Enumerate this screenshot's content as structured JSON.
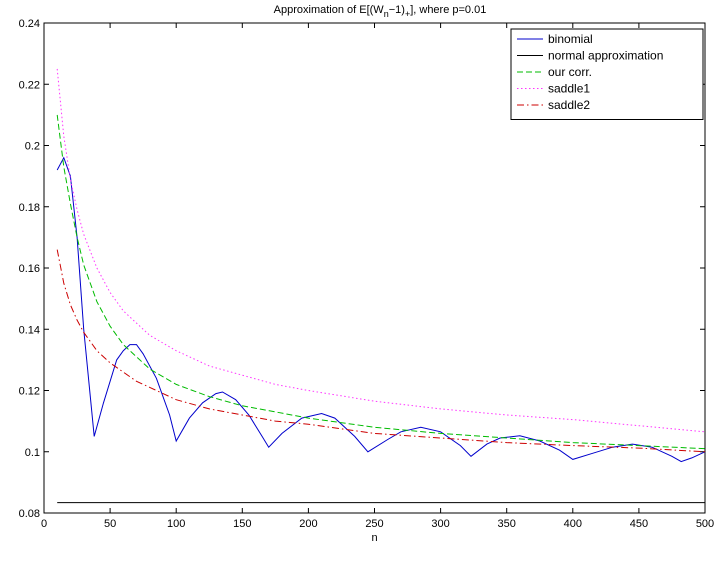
{
  "chart_data": {
    "type": "line",
    "title": {
      "prefix": "Approximation of E[(W",
      "sub1": "n",
      "middle": "−1)",
      "sub2": "+",
      "suffix": "], where p=0.01"
    },
    "xlabel": "n",
    "ylabel": "",
    "xlim": [
      0,
      500
    ],
    "ylim": [
      0.08,
      0.24
    ],
    "xticks": [
      0,
      50,
      100,
      150,
      200,
      250,
      300,
      350,
      400,
      450,
      500
    ],
    "yticks": [
      0.08,
      0.1,
      0.12,
      0.14,
      0.16,
      0.18,
      0.2,
      0.22,
      0.24
    ],
    "ytick_labels": [
      "0.08",
      "0.1",
      "0.12",
      "0.14",
      "0.16",
      "0.18",
      "0.2",
      "0.22",
      "0.24"
    ],
    "grid": false,
    "legend_position": "top-right",
    "series": [
      {
        "name": "binomial",
        "color": "#0000cc",
        "dash": "solid",
        "x": [
          10,
          15,
          20,
          25,
          30,
          38,
          45,
          55,
          60,
          65,
          70,
          75,
          85,
          95,
          100,
          110,
          120,
          130,
          135,
          145,
          155,
          165,
          170,
          180,
          195,
          210,
          220,
          235,
          245,
          260,
          270,
          285,
          300,
          315,
          323,
          335,
          345,
          360,
          375,
          390,
          400,
          415,
          430,
          445,
          460,
          475,
          482,
          490,
          500
        ],
        "y": [
          0.192,
          0.196,
          0.19,
          0.17,
          0.14,
          0.105,
          0.116,
          0.13,
          0.133,
          0.135,
          0.135,
          0.132,
          0.124,
          0.112,
          0.1035,
          0.111,
          0.116,
          0.119,
          0.1195,
          0.117,
          0.112,
          0.105,
          0.1015,
          0.106,
          0.111,
          0.1125,
          0.111,
          0.105,
          0.1,
          0.104,
          0.1065,
          0.108,
          0.1065,
          0.102,
          0.0985,
          0.1025,
          0.1045,
          0.1052,
          0.1035,
          0.1005,
          0.0975,
          0.0995,
          0.1015,
          0.1025,
          0.1015,
          0.0985,
          0.0968,
          0.098,
          0.1
        ]
      },
      {
        "name": "normal approximation",
        "color": "#000000",
        "dash": "solid",
        "x": [
          10,
          500
        ],
        "y": [
          0.0834,
          0.0834
        ]
      },
      {
        "name": "our corr.",
        "color": "#00bb00",
        "dash": "dashed",
        "x": [
          10,
          15,
          20,
          25,
          30,
          40,
          50,
          60,
          70,
          80,
          100,
          125,
          150,
          175,
          200,
          250,
          300,
          350,
          400,
          450,
          500
        ],
        "y": [
          0.21,
          0.193,
          0.181,
          0.17,
          0.161,
          0.149,
          0.141,
          0.135,
          0.131,
          0.127,
          0.122,
          0.118,
          0.115,
          0.113,
          0.111,
          0.108,
          0.106,
          0.1045,
          0.103,
          0.102,
          0.101
        ]
      },
      {
        "name": "saddle1",
        "color": "#ff33ff",
        "dash": "dotted",
        "x": [
          10,
          15,
          20,
          25,
          30,
          40,
          50,
          60,
          70,
          80,
          100,
          125,
          150,
          175,
          200,
          250,
          300,
          350,
          400,
          450,
          500
        ],
        "y": [
          0.225,
          0.203,
          0.189,
          0.179,
          0.171,
          0.16,
          0.152,
          0.146,
          0.142,
          0.138,
          0.133,
          0.128,
          0.125,
          0.122,
          0.12,
          0.1165,
          0.114,
          0.112,
          0.1105,
          0.1085,
          0.1065
        ]
      },
      {
        "name": "saddle2",
        "color": "#cc0000",
        "dash": "dashdot",
        "x": [
          10,
          15,
          20,
          25,
          30,
          40,
          50,
          60,
          70,
          80,
          100,
          125,
          150,
          175,
          200,
          250,
          300,
          350,
          400,
          450,
          500
        ],
        "y": [
          0.166,
          0.155,
          0.148,
          0.143,
          0.139,
          0.133,
          0.129,
          0.126,
          0.123,
          0.121,
          0.117,
          0.114,
          0.112,
          0.11,
          0.109,
          0.106,
          0.1045,
          0.103,
          0.102,
          0.1012,
          0.1
        ]
      }
    ]
  }
}
